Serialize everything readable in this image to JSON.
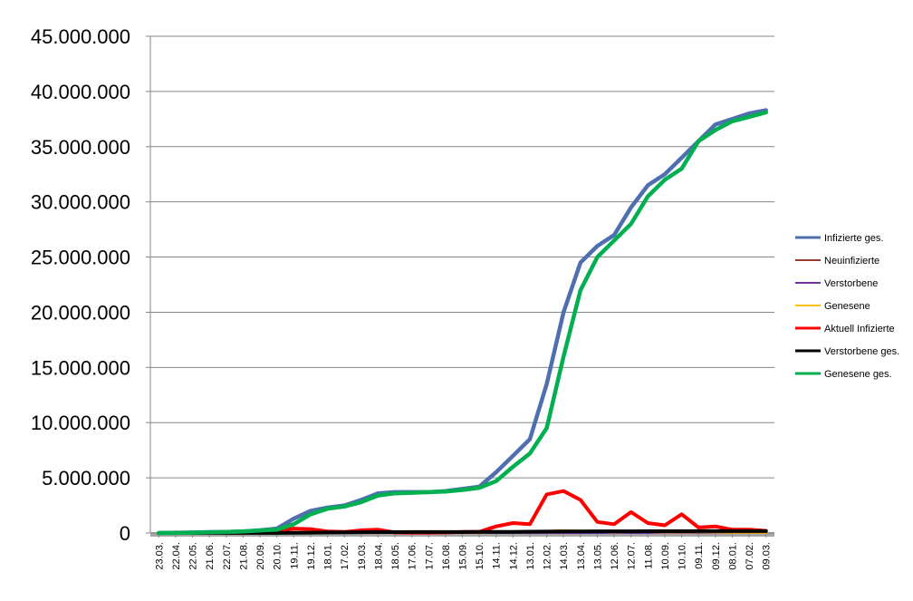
{
  "chart_data": {
    "type": "line",
    "title": "",
    "xlabel": "",
    "ylabel": "",
    "ylim": [
      0,
      45000000
    ],
    "yticks": [
      0,
      5000000,
      10000000,
      15000000,
      20000000,
      25000000,
      30000000,
      35000000,
      40000000,
      45000000
    ],
    "ytick_labels": [
      "0",
      "5.000.000",
      "10.000.000",
      "15.000.000",
      "20.000.000",
      "25.000.000",
      "30.000.000",
      "35.000.000",
      "40.000.000",
      "45.000.000"
    ],
    "grid": true,
    "legend_position": "right",
    "categories": [
      "23.03.",
      "22.04.",
      "22.05.",
      "21.06.",
      "22.07.",
      "21.08.",
      "20.09.",
      "20.10.",
      "19.11.",
      "19.12.",
      "18.01.",
      "17.02.",
      "19.03.",
      "18.04.",
      "18.05.",
      "17.06.",
      "17.07.",
      "16.08.",
      "15.09.",
      "15.10.",
      "14.11.",
      "14.12.",
      "13.01.",
      "12.02.",
      "14.03.",
      "13.04.",
      "13.05.",
      "12.06.",
      "12.07.",
      "11.08.",
      "10.09.",
      "10.10.",
      "09.11.",
      "09.12.",
      "08.01.",
      "07.02.",
      "09.03."
    ],
    "series": [
      {
        "name": "Infizierte ges.",
        "color": "#4f6fb0",
        "values": [
          0,
          20000,
          50000,
          80000,
          100000,
          150000,
          250000,
          400000,
          1300000,
          2000000,
          2300000,
          2500000,
          3000000,
          3600000,
          3700000,
          3700000,
          3700000,
          3800000,
          4000000,
          4200000,
          5500000,
          7000000,
          8500000,
          13500000,
          20000000,
          24500000,
          26000000,
          27000000,
          29500000,
          31500000,
          32500000,
          34000000,
          35500000,
          37000000,
          37500000,
          38000000,
          38300000
        ]
      },
      {
        "name": "Neuinfizierte",
        "color": "#9b3a2e",
        "values": [
          0,
          2000,
          2000,
          2000,
          3000,
          5000,
          8000,
          20000,
          40000,
          30000,
          20000,
          15000,
          25000,
          30000,
          10000,
          5000,
          5000,
          8000,
          15000,
          20000,
          60000,
          80000,
          100000,
          200000,
          250000,
          150000,
          50000,
          50000,
          100000,
          60000,
          40000,
          80000,
          40000,
          30000,
          20000,
          15000,
          10000
        ]
      },
      {
        "name": "Verstorbene",
        "color": "#7030a0",
        "values": [
          0,
          200,
          300,
          200,
          100,
          100,
          200,
          500,
          2000,
          3000,
          2000,
          1500,
          1000,
          800,
          500,
          300,
          200,
          200,
          300,
          400,
          800,
          1000,
          800,
          700,
          600,
          500,
          300,
          200,
          300,
          300,
          200,
          300,
          300,
          300,
          200,
          200,
          200
        ]
      },
      {
        "name": "Genesene",
        "color": "#ffc000",
        "values": [
          0,
          5000,
          8000,
          5000,
          3000,
          3000,
          5000,
          10000,
          30000,
          30000,
          25000,
          20000,
          25000,
          25000,
          15000,
          8000,
          5000,
          5000,
          10000,
          15000,
          40000,
          60000,
          100000,
          180000,
          250000,
          220000,
          100000,
          50000,
          80000,
          80000,
          40000,
          50000,
          60000,
          40000,
          20000,
          15000,
          10000
        ]
      },
      {
        "name": "Aktuell Infizierte",
        "color": "#ff0000",
        "values": [
          0,
          50000,
          20000,
          5000,
          5000,
          10000,
          50000,
          150000,
          400000,
          350000,
          150000,
          100000,
          250000,
          300000,
          50000,
          30000,
          30000,
          50000,
          100000,
          100000,
          600000,
          900000,
          800000,
          3500000,
          3800000,
          3000000,
          1000000,
          800000,
          1900000,
          900000,
          700000,
          1700000,
          500000,
          600000,
          300000,
          300000,
          200000
        ]
      },
      {
        "name": "Verstorbene ges.",
        "color": "#000000",
        "values": [
          0,
          5000,
          8000,
          9000,
          9000,
          9300,
          9500,
          10000,
          15000,
          30000,
          50000,
          65000,
          75000,
          80000,
          85000,
          90000,
          91000,
          92000,
          93000,
          95000,
          100000,
          110000,
          120000,
          130000,
          140000,
          150000,
          155000,
          158000,
          160000,
          163000,
          165000,
          168000,
          170000,
          172000,
          173000,
          174000,
          175000
        ]
      },
      {
        "name": "Genesene ges.",
        "color": "#00b050",
        "values": [
          0,
          10000,
          30000,
          70000,
          90000,
          140000,
          220000,
          300000,
          800000,
          1700000,
          2200000,
          2400000,
          2800000,
          3400000,
          3600000,
          3650000,
          3700000,
          3750000,
          3900000,
          4100000,
          4700000,
          6000000,
          7200000,
          9500000,
          16000000,
          22000000,
          25000000,
          26500000,
          28000000,
          30500000,
          32000000,
          33000000,
          35500000,
          36500000,
          37300000,
          37700000,
          38100000
        ]
      }
    ]
  }
}
